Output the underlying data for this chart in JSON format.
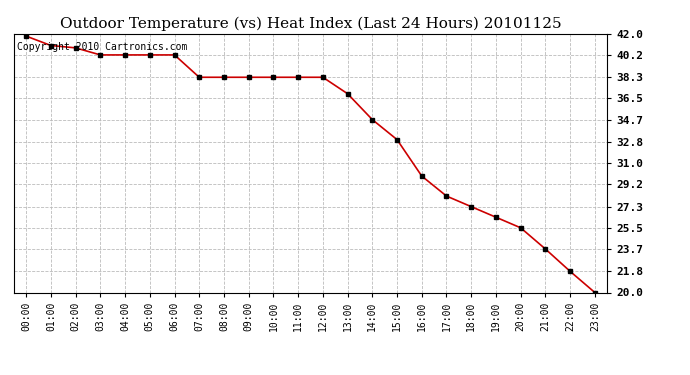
{
  "title": "Outdoor Temperature (vs) Heat Index (Last 24 Hours) 20101125",
  "copyright": "Copyright 2010 Cartronics.com",
  "x_labels": [
    "00:00",
    "01:00",
    "02:00",
    "03:00",
    "04:00",
    "05:00",
    "06:00",
    "07:00",
    "08:00",
    "09:00",
    "10:00",
    "11:00",
    "12:00",
    "13:00",
    "14:00",
    "15:00",
    "16:00",
    "17:00",
    "18:00",
    "19:00",
    "20:00",
    "21:00",
    "22:00",
    "23:00"
  ],
  "y_values": [
    41.8,
    41.0,
    40.8,
    40.2,
    40.2,
    40.2,
    40.2,
    38.3,
    38.3,
    38.3,
    38.3,
    38.3,
    38.3,
    36.9,
    34.7,
    33.0,
    29.9,
    28.2,
    27.3,
    26.4,
    25.5,
    23.7,
    21.8,
    20.0
  ],
  "ylim_min": 20.0,
  "ylim_max": 42.0,
  "ytick_values": [
    20.0,
    21.8,
    23.7,
    25.5,
    27.3,
    29.2,
    31.0,
    32.8,
    34.7,
    36.5,
    38.3,
    40.2,
    42.0
  ],
  "ytick_labels": [
    "20.0",
    "21.8",
    "23.7",
    "25.5",
    "27.3",
    "29.2",
    "31.0",
    "32.8",
    "34.7",
    "36.5",
    "38.3",
    "40.2",
    "42.0"
  ],
  "line_color": "#cc0000",
  "marker_color": "#000000",
  "bg_color": "#ffffff",
  "grid_color": "#bbbbbb",
  "title_fontsize": 11,
  "copyright_fontsize": 7,
  "tick_fontsize": 7,
  "ytick_fontsize": 8
}
